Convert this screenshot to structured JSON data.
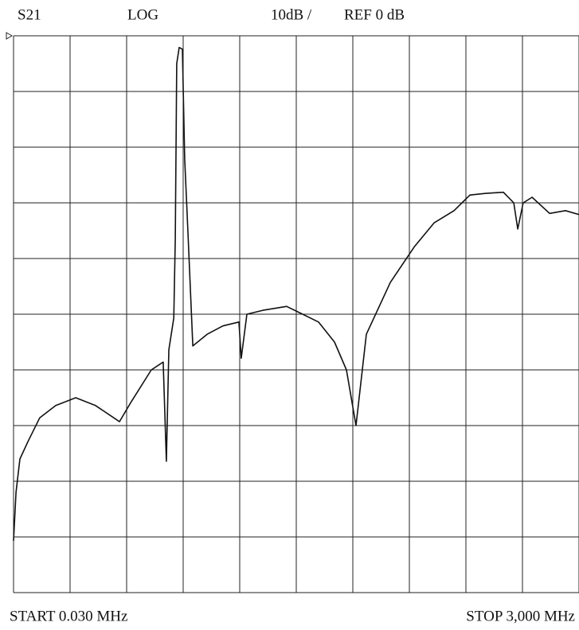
{
  "chart_data": {
    "type": "line",
    "trace": "S21",
    "format": "LOG",
    "scale": "10dB /",
    "reference": "REF 0 dB",
    "start": "START 0.030 MHz",
    "stop": "STOP 3,000 MHz",
    "xlim": [
      0.03,
      3000
    ],
    "ylim": [
      -100,
      0
    ],
    "xticks": [
      0.03,
      300,
      600,
      900,
      1200,
      1500,
      1800,
      2100,
      2400,
      2700,
      3000
    ],
    "yticks": [
      -100,
      -90,
      -80,
      -70,
      -60,
      -50,
      -40,
      -30,
      -20,
      -10,
      0
    ],
    "grid": true,
    "series": [
      {
        "color": "#111111",
        "x": [
          0.03,
          13,
          34,
          76,
          139,
          224,
          330,
          435,
          562,
          625,
          731,
          794,
          811,
          824,
          850,
          858,
          866,
          879,
          896,
          908,
          925,
          951,
          1027,
          1111,
          1196,
          1208,
          1238,
          1323,
          1449,
          1534,
          1618,
          1703,
          1766,
          1817,
          1872,
          1999,
          2126,
          2231,
          2337,
          2421,
          2506,
          2599,
          2654,
          2675,
          2704,
          2751,
          2844,
          2928,
          3000
        ],
        "values": [
          -90.7,
          -82,
          -76,
          -72.9,
          -68.6,
          -66.4,
          -65,
          -66.4,
          -69.3,
          -65.7,
          -60,
          -58.6,
          -76.4,
          -56.4,
          -50.7,
          -36.4,
          -5,
          -2.1,
          -2.4,
          -22.1,
          -35,
          -55.7,
          -53.6,
          -52.1,
          -51.4,
          -57.9,
          -50,
          -49.3,
          -48.6,
          -50,
          -51.4,
          -55,
          -60,
          -70,
          -53.6,
          -44.3,
          -37.9,
          -33.6,
          -31.4,
          -28.6,
          -28.3,
          -28.1,
          -30,
          -34.7,
          -30,
          -29,
          -31.9,
          -31.4,
          -32.1
        ]
      }
    ]
  }
}
